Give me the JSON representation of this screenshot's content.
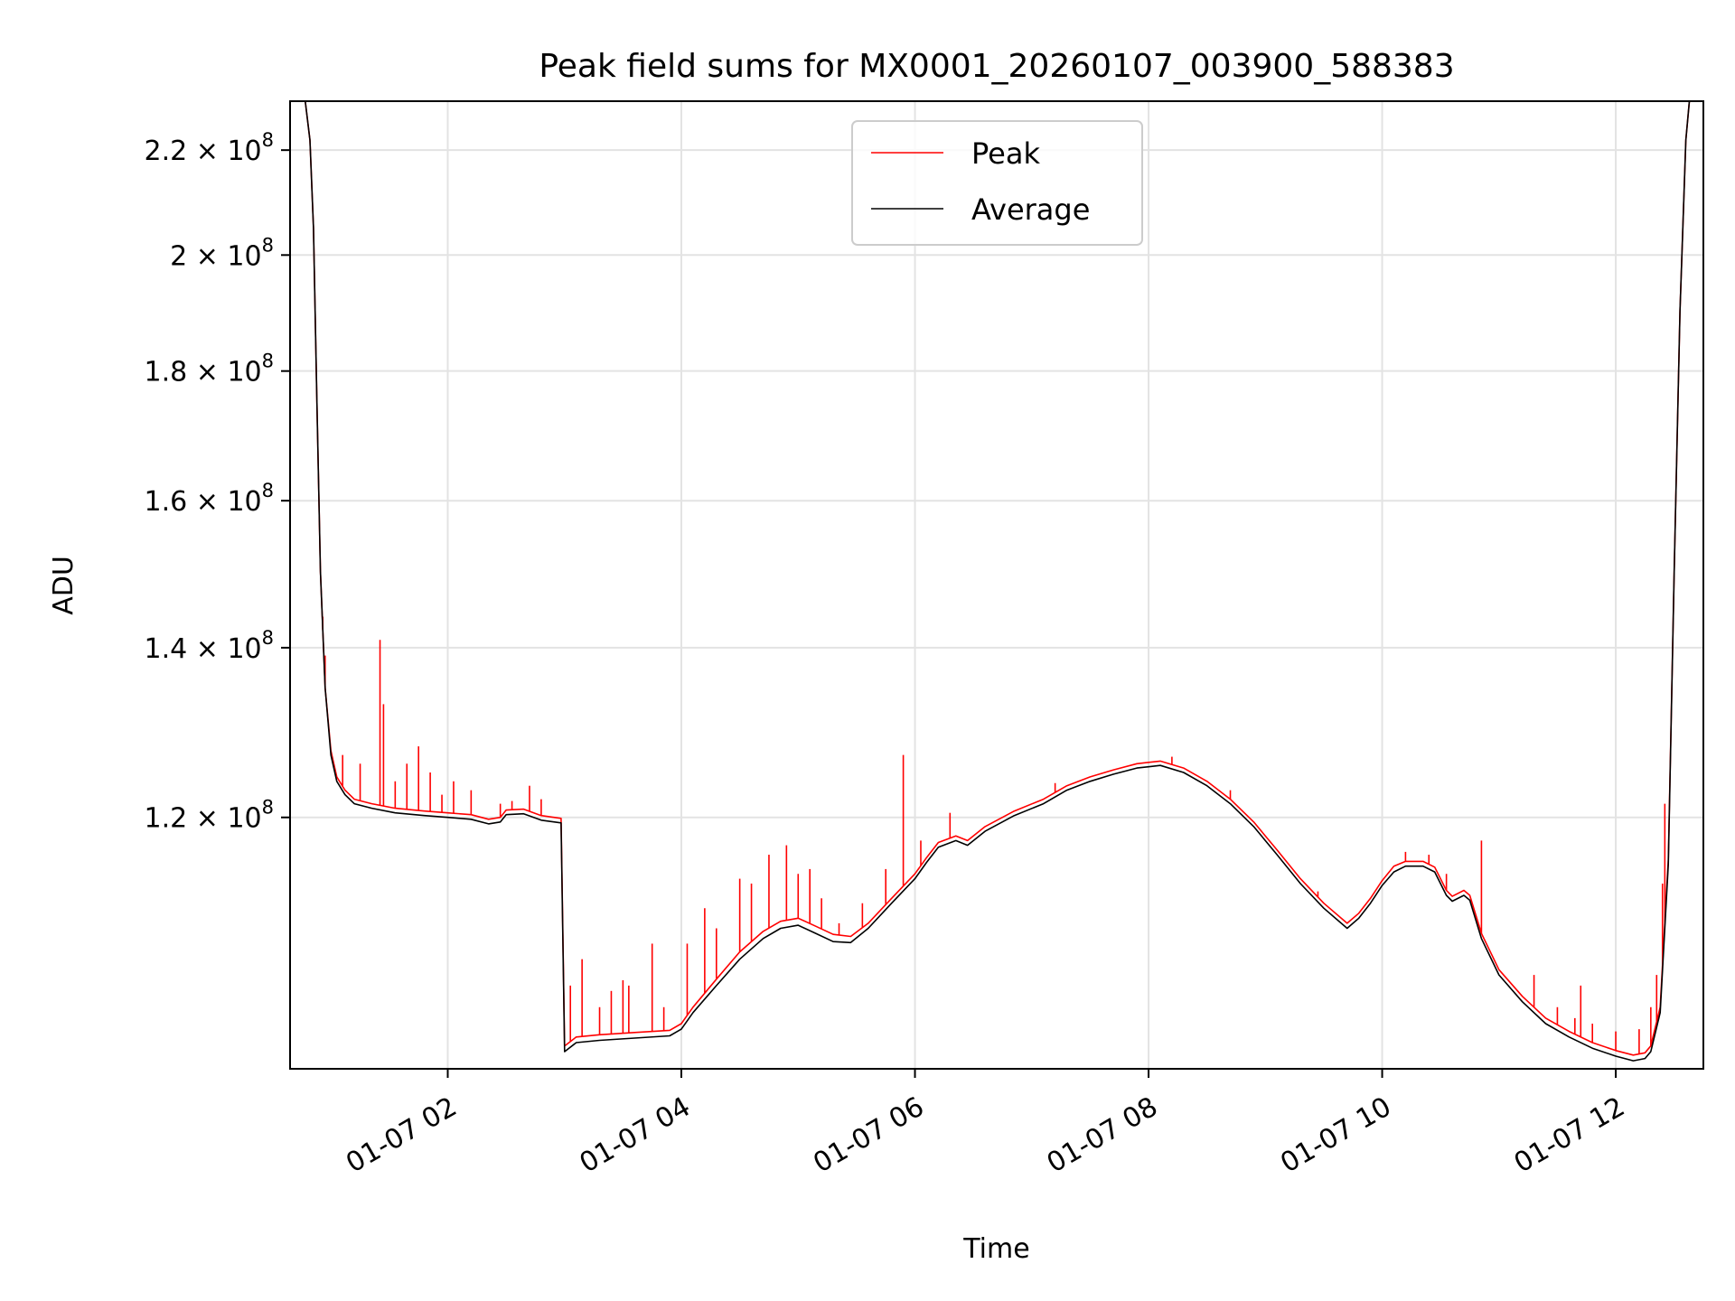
{
  "chart_data": {
    "type": "line",
    "title": "Peak field sums for MX0001_20260107_003900_588383",
    "xlabel": "Time",
    "ylabel": "ADU",
    "x_unit": "hours since 01-07 00:00",
    "xlim": [
      0.65,
      12.75
    ],
    "ylim": [
      95500000,
      230000000
    ],
    "y_scale": "log",
    "grid": true,
    "legend_position": "top-center",
    "legend": [
      "Peak",
      "Average"
    ],
    "x_ticks": [
      {
        "value": 2,
        "label": "01-07 02"
      },
      {
        "value": 4,
        "label": "01-07 04"
      },
      {
        "value": 6,
        "label": "01-07 06"
      },
      {
        "value": 8,
        "label": "01-07 08"
      },
      {
        "value": 10,
        "label": "01-07 10"
      },
      {
        "value": 12,
        "label": "01-07 12"
      }
    ],
    "y_ticks": [
      {
        "value": 120000000,
        "mantissa": "1.2",
        "exponent": "8"
      },
      {
        "value": 140000000,
        "mantissa": "1.4",
        "exponent": "8"
      },
      {
        "value": 160000000,
        "mantissa": "1.6",
        "exponent": "8"
      },
      {
        "value": 180000000,
        "mantissa": "1.8",
        "exponent": "8"
      },
      {
        "value": 200000000,
        "mantissa": "2",
        "exponent": "8"
      },
      {
        "value": 220000000,
        "mantissa": "2.2",
        "exponent": "8"
      }
    ],
    "tick_times_symbol": "×",
    "tick_base": "10",
    "series": [
      {
        "name": "Average",
        "color": "#000000",
        "points": [
          [
            0.65,
            230000000
          ],
          [
            0.78,
            230000000
          ],
          [
            0.82,
            222000000
          ],
          [
            0.85,
            205000000
          ],
          [
            0.88,
            175000000
          ],
          [
            0.91,
            150000000
          ],
          [
            0.95,
            135000000
          ],
          [
            1.0,
            127000000
          ],
          [
            1.05,
            124000000
          ],
          [
            1.12,
            122500000
          ],
          [
            1.2,
            121500000
          ],
          [
            1.35,
            121000000
          ],
          [
            1.55,
            120500000
          ],
          [
            1.8,
            120200000
          ],
          [
            2.0,
            120000000
          ],
          [
            2.2,
            119800000
          ],
          [
            2.35,
            119300000
          ],
          [
            2.45,
            119500000
          ],
          [
            2.5,
            120300000
          ],
          [
            2.65,
            120400000
          ],
          [
            2.8,
            119700000
          ],
          [
            2.97,
            119400000
          ],
          [
            3.0,
            97000000
          ],
          [
            3.1,
            97800000
          ],
          [
            3.3,
            98000000
          ],
          [
            3.6,
            98200000
          ],
          [
            3.9,
            98400000
          ],
          [
            4.0,
            99000000
          ],
          [
            4.1,
            100500000
          ],
          [
            4.3,
            103000000
          ],
          [
            4.5,
            105500000
          ],
          [
            4.7,
            107500000
          ],
          [
            4.85,
            108500000
          ],
          [
            5.0,
            108800000
          ],
          [
            5.15,
            108000000
          ],
          [
            5.3,
            107200000
          ],
          [
            5.45,
            107100000
          ],
          [
            5.6,
            108500000
          ],
          [
            5.8,
            111000000
          ],
          [
            6.0,
            113500000
          ],
          [
            6.1,
            115200000
          ],
          [
            6.2,
            116800000
          ],
          [
            6.35,
            117500000
          ],
          [
            6.45,
            117000000
          ],
          [
            6.6,
            118500000
          ],
          [
            6.85,
            120200000
          ],
          [
            7.1,
            121500000
          ],
          [
            7.3,
            123000000
          ],
          [
            7.5,
            124000000
          ],
          [
            7.7,
            124800000
          ],
          [
            7.9,
            125500000
          ],
          [
            8.1,
            125800000
          ],
          [
            8.3,
            125000000
          ],
          [
            8.5,
            123500000
          ],
          [
            8.7,
            121500000
          ],
          [
            8.9,
            119000000
          ],
          [
            9.1,
            116000000
          ],
          [
            9.3,
            113000000
          ],
          [
            9.5,
            110500000
          ],
          [
            9.7,
            108500000
          ],
          [
            9.8,
            109500000
          ],
          [
            9.9,
            111000000
          ],
          [
            10.0,
            112800000
          ],
          [
            10.1,
            114200000
          ],
          [
            10.2,
            114800000
          ],
          [
            10.35,
            114800000
          ],
          [
            10.45,
            114200000
          ],
          [
            10.55,
            111800000
          ],
          [
            10.6,
            111200000
          ],
          [
            10.7,
            111800000
          ],
          [
            10.75,
            111300000
          ],
          [
            10.85,
            107500000
          ],
          [
            11.0,
            104000000
          ],
          [
            11.2,
            101500000
          ],
          [
            11.4,
            99500000
          ],
          [
            11.6,
            98300000
          ],
          [
            11.8,
            97300000
          ],
          [
            12.0,
            96600000
          ],
          [
            12.15,
            96200000
          ],
          [
            12.25,
            96400000
          ],
          [
            12.3,
            97000000
          ],
          [
            12.38,
            100500000
          ],
          [
            12.45,
            115000000
          ],
          [
            12.5,
            150000000
          ],
          [
            12.55,
            190000000
          ],
          [
            12.6,
            222000000
          ],
          [
            12.63,
            230000000
          ],
          [
            12.75,
            230000000
          ]
        ]
      },
      {
        "name": "Peak",
        "color": "#ff0000",
        "points": [
          [
            0.65,
            230000000
          ],
          [
            0.78,
            230000000
          ],
          [
            0.82,
            222000000
          ],
          [
            0.85,
            205000000
          ],
          [
            0.88,
            175000000
          ],
          [
            0.91,
            150000000
          ],
          [
            0.95,
            135000000
          ],
          [
            1.0,
            127500000
          ],
          [
            1.05,
            124500000
          ],
          [
            1.12,
            123000000
          ],
          [
            1.2,
            122000000
          ],
          [
            1.35,
            121500000
          ],
          [
            1.55,
            121000000
          ],
          [
            1.8,
            120700000
          ],
          [
            2.0,
            120500000
          ],
          [
            2.2,
            120300000
          ],
          [
            2.35,
            119800000
          ],
          [
            2.45,
            120000000
          ],
          [
            2.5,
            120800000
          ],
          [
            2.65,
            120900000
          ],
          [
            2.8,
            120200000
          ],
          [
            2.97,
            119900000
          ],
          [
            3.0,
            97500000
          ],
          [
            3.1,
            98300000
          ],
          [
            3.3,
            98500000
          ],
          [
            3.6,
            98700000
          ],
          [
            3.9,
            98900000
          ],
          [
            4.0,
            99500000
          ],
          [
            4.1,
            101000000
          ],
          [
            4.3,
            103600000
          ],
          [
            4.5,
            106200000
          ],
          [
            4.7,
            108200000
          ],
          [
            4.85,
            109200000
          ],
          [
            5.0,
            109500000
          ],
          [
            5.15,
            108700000
          ],
          [
            5.3,
            107900000
          ],
          [
            5.45,
            107700000
          ],
          [
            5.6,
            109000000
          ],
          [
            5.8,
            111500000
          ],
          [
            6.0,
            114000000
          ],
          [
            6.1,
            115700000
          ],
          [
            6.2,
            117300000
          ],
          [
            6.35,
            118000000
          ],
          [
            6.45,
            117500000
          ],
          [
            6.6,
            119000000
          ],
          [
            6.85,
            120700000
          ],
          [
            7.1,
            122000000
          ],
          [
            7.3,
            123500000
          ],
          [
            7.5,
            124500000
          ],
          [
            7.7,
            125300000
          ],
          [
            7.9,
            126000000
          ],
          [
            8.1,
            126300000
          ],
          [
            8.3,
            125500000
          ],
          [
            8.5,
            124000000
          ],
          [
            8.7,
            122000000
          ],
          [
            8.9,
            119500000
          ],
          [
            9.1,
            116500000
          ],
          [
            9.3,
            113500000
          ],
          [
            9.5,
            111000000
          ],
          [
            9.7,
            109000000
          ],
          [
            9.8,
            110000000
          ],
          [
            9.9,
            111500000
          ],
          [
            10.0,
            113300000
          ],
          [
            10.1,
            114800000
          ],
          [
            10.2,
            115300000
          ],
          [
            10.35,
            115300000
          ],
          [
            10.45,
            114700000
          ],
          [
            10.55,
            112300000
          ],
          [
            10.6,
            111700000
          ],
          [
            10.7,
            112300000
          ],
          [
            10.75,
            111800000
          ],
          [
            10.85,
            108000000
          ],
          [
            11.0,
            104500000
          ],
          [
            11.2,
            102000000
          ],
          [
            11.4,
            100000000
          ],
          [
            11.6,
            98800000
          ],
          [
            11.8,
            97800000
          ],
          [
            12.0,
            97100000
          ],
          [
            12.15,
            96700000
          ],
          [
            12.25,
            96900000
          ],
          [
            12.3,
            97500000
          ],
          [
            12.38,
            101000000
          ],
          [
            12.45,
            115500000
          ],
          [
            12.5,
            150000000
          ],
          [
            12.55,
            190000000
          ],
          [
            12.6,
            222000000
          ],
          [
            12.63,
            230000000
          ],
          [
            12.75,
            230000000
          ]
        ],
        "spikes": [
          [
            0.93,
            144000000
          ],
          [
            0.95,
            139000000
          ],
          [
            1.1,
            127000000
          ],
          [
            1.25,
            126000000
          ],
          [
            1.42,
            141000000
          ],
          [
            1.45,
            133000000
          ],
          [
            1.55,
            124000000
          ],
          [
            1.65,
            126000000
          ],
          [
            1.75,
            128000000
          ],
          [
            1.85,
            125000000
          ],
          [
            1.95,
            122500000
          ],
          [
            2.05,
            124000000
          ],
          [
            2.2,
            123000000
          ],
          [
            2.45,
            121500000
          ],
          [
            2.55,
            121800000
          ],
          [
            2.7,
            123500000
          ],
          [
            2.8,
            122000000
          ],
          [
            3.05,
            103000000
          ],
          [
            3.15,
            105500000
          ],
          [
            3.3,
            101000000
          ],
          [
            3.4,
            102500000
          ],
          [
            3.5,
            103500000
          ],
          [
            3.55,
            103000000
          ],
          [
            3.75,
            107000000
          ],
          [
            3.85,
            101000000
          ],
          [
            4.05,
            107000000
          ],
          [
            4.2,
            110500000
          ],
          [
            4.3,
            108500000
          ],
          [
            4.5,
            113500000
          ],
          [
            4.6,
            113000000
          ],
          [
            4.75,
            116000000
          ],
          [
            4.9,
            117000000
          ],
          [
            5.0,
            114000000
          ],
          [
            5.1,
            114500000
          ],
          [
            5.2,
            111500000
          ],
          [
            5.35,
            109000000
          ],
          [
            5.55,
            111000000
          ],
          [
            5.75,
            114500000
          ],
          [
            5.9,
            127000000
          ],
          [
            6.05,
            117500000
          ],
          [
            6.3,
            120500000
          ],
          [
            7.2,
            123800000
          ],
          [
            8.2,
            126800000
          ],
          [
            8.7,
            123000000
          ],
          [
            9.0,
            118000000
          ],
          [
            9.45,
            112200000
          ],
          [
            10.2,
            116300000
          ],
          [
            10.4,
            116000000
          ],
          [
            10.55,
            114000000
          ],
          [
            10.85,
            117500000
          ],
          [
            11.3,
            104000000
          ],
          [
            11.5,
            101000000
          ],
          [
            11.65,
            100000000
          ],
          [
            11.7,
            103000000
          ],
          [
            11.8,
            99500000
          ],
          [
            12.0,
            98800000
          ],
          [
            12.2,
            99000000
          ],
          [
            12.3,
            101000000
          ],
          [
            12.35,
            104000000
          ],
          [
            12.4,
            113000000
          ],
          [
            12.42,
            121500000
          ]
        ]
      }
    ]
  }
}
